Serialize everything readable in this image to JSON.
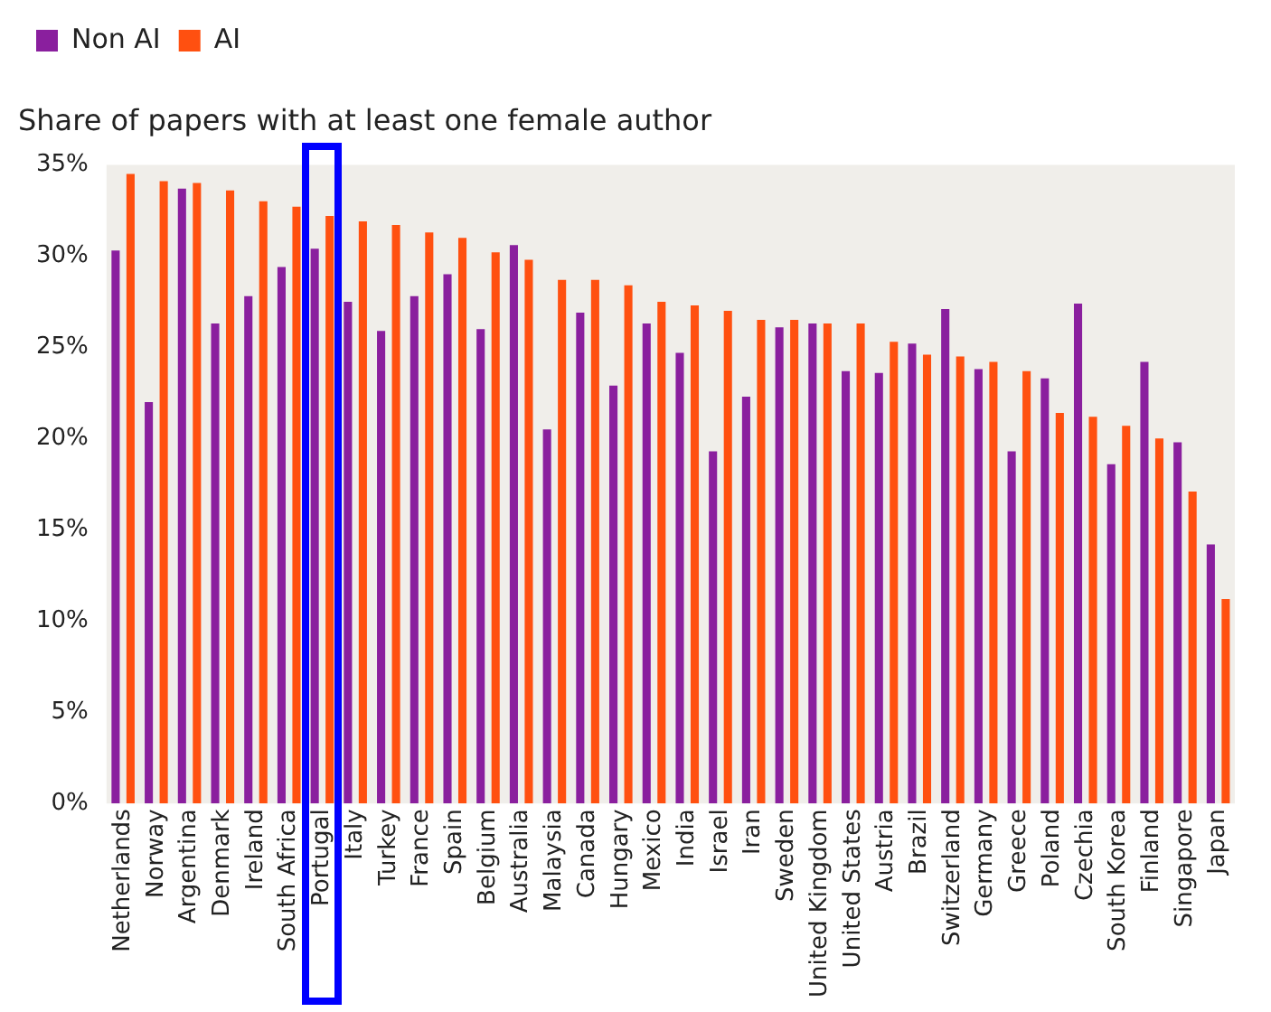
{
  "chart_data": {
    "type": "bar",
    "title": "Share of papers with at least one female author",
    "categories": [
      "Netherlands",
      "Norway",
      "Argentina",
      "Denmark",
      "Ireland",
      "South Africa",
      "Portugal",
      "Italy",
      "Turkey",
      "France",
      "Spain",
      "Belgium",
      "Australia",
      "Malaysia",
      "Canada",
      "Hungary",
      "Mexico",
      "India",
      "Israel",
      "Iran",
      "Sweden",
      "United Kingdom",
      "United States",
      "Austria",
      "Brazil",
      "Switzerland",
      "Germany",
      "Greece",
      "Poland",
      "Czechia",
      "South Korea",
      "Finland",
      "Singapore",
      "Japan"
    ],
    "series": [
      {
        "name": "Non AI",
        "color": "#8a1f9e",
        "values": [
          30.3,
          22.0,
          33.7,
          26.3,
          27.8,
          29.4,
          30.4,
          27.5,
          25.9,
          27.8,
          29.0,
          26.0,
          30.6,
          20.5,
          26.9,
          22.9,
          26.3,
          24.7,
          19.3,
          22.3,
          26.1,
          26.3,
          23.7,
          23.6,
          25.2,
          27.1,
          23.8,
          19.3,
          23.3,
          27.4,
          18.6,
          24.2,
          19.8,
          14.2
        ]
      },
      {
        "name": "AI",
        "color": "#ff5010",
        "values": [
          34.5,
          34.1,
          34.0,
          33.6,
          33.0,
          32.7,
          32.2,
          31.9,
          31.7,
          31.3,
          31.0,
          30.2,
          29.8,
          28.7,
          28.7,
          28.4,
          27.5,
          27.3,
          27.0,
          26.5,
          26.5,
          26.3,
          26.3,
          25.3,
          24.6,
          24.5,
          24.2,
          23.7,
          21.4,
          21.2,
          20.7,
          20.0,
          17.1,
          11.2
        ]
      }
    ],
    "ylim": [
      0,
      35
    ],
    "yticks": [
      {
        "value": 0,
        "label": "0%"
      },
      {
        "value": 5,
        "label": "5%"
      },
      {
        "value": 10,
        "label": "10%"
      },
      {
        "value": 15,
        "label": "15%"
      },
      {
        "value": 20,
        "label": "20%"
      },
      {
        "value": 25,
        "label": "25%"
      },
      {
        "value": 30,
        "label": "30%"
      },
      {
        "value": 35,
        "label": "35%"
      }
    ],
    "grid": false,
    "legend": "top left"
  }
}
